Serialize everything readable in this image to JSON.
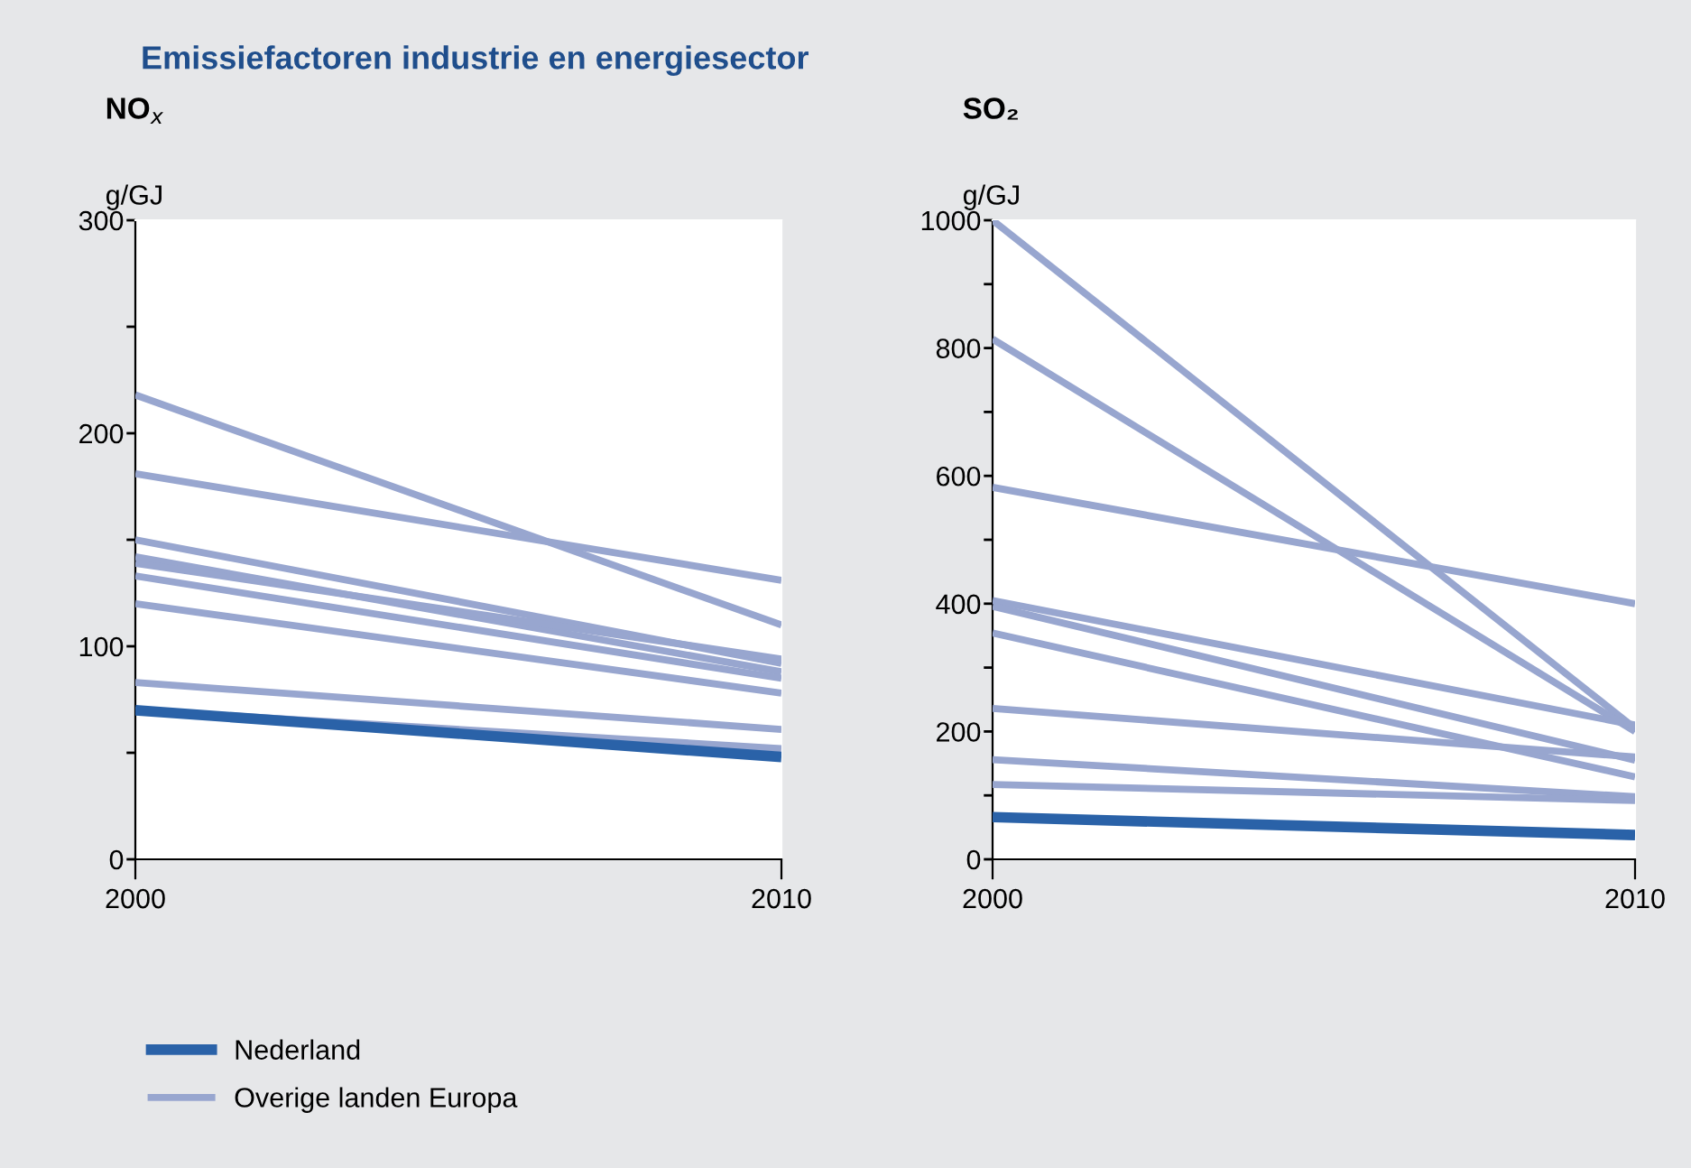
{
  "chart_data": [
    {
      "type": "line",
      "title": "Emissiefactoren industrie en energiesector",
      "subtitle": "NO$_{x}$",
      "ylabel": "g/GJ",
      "x": [
        "2000",
        "2010"
      ],
      "xlim": [
        "2000",
        "2010"
      ],
      "xticks": [
        "2000",
        "2010"
      ],
      "ylim": [
        0,
        300
      ],
      "yticks": [
        0,
        {
          "value": 50,
          "label": null
        },
        100,
        {
          "value": 150,
          "label": null
        },
        200,
        {
          "value": 250,
          "label": null
        },
        300
      ],
      "grid": false,
      "legend": "bottom",
      "series": [
        {
          "name": "Overige landen Europa",
          "color": "#98a6cf",
          "values": [
            218,
            110
          ]
        },
        {
          "color": "#98a6cf",
          "values": [
            181,
            131
          ]
        },
        {
          "color": "#98a6cf",
          "values": [
            150,
            92
          ]
        },
        {
          "color": "#98a6cf",
          "values": [
            142,
            88
          ]
        },
        {
          "color": "#98a6cf",
          "values": [
            139,
            94
          ]
        },
        {
          "color": "#98a6cf",
          "values": [
            133,
            85
          ]
        },
        {
          "color": "#98a6cf",
          "values": [
            120,
            78
          ]
        },
        {
          "color": "#98a6cf",
          "values": [
            83,
            61
          ]
        },
        {
          "color": "#98a6cf",
          "values": [
            70,
            52
          ]
        },
        {
          "name": "Nederland",
          "color": "#2a62a8",
          "values": [
            70,
            48
          ]
        }
      ]
    },
    {
      "type": "line",
      "subtitle": "SO₂",
      "ylabel": "g/GJ",
      "x": [
        "2000",
        "2010"
      ],
      "xlim": [
        "2000",
        "2010"
      ],
      "xticks": [
        "2000",
        "2010"
      ],
      "ylim": [
        0,
        1000
      ],
      "yticks": [
        0,
        {
          "value": 100,
          "label": null
        },
        200,
        {
          "value": 300,
          "label": null
        },
        400,
        {
          "value": 500,
          "label": null
        },
        600,
        {
          "value": 700,
          "label": null
        },
        800,
        {
          "value": 900,
          "label": null
        },
        1000
      ],
      "grid": false,
      "series": [
        {
          "color": "#98a6cf",
          "values": [
            1000,
            205
          ]
        },
        {
          "color": "#98a6cf",
          "values": [
            814,
            200
          ]
        },
        {
          "color": "#98a6cf",
          "values": [
            582,
            400
          ]
        },
        {
          "color": "#98a6cf",
          "values": [
            405,
            210
          ]
        },
        {
          "color": "#98a6cf",
          "values": [
            396,
            155
          ]
        },
        {
          "color": "#98a6cf",
          "values": [
            354,
            129
          ]
        },
        {
          "color": "#98a6cf",
          "values": [
            236,
            160
          ]
        },
        {
          "color": "#98a6cf",
          "values": [
            156,
            98
          ]
        },
        {
          "color": "#98a6cf",
          "values": [
            117,
            92
          ]
        },
        {
          "color": "#2a62a8",
          "values": [
            66,
            38
          ]
        }
      ]
    }
  ]
}
